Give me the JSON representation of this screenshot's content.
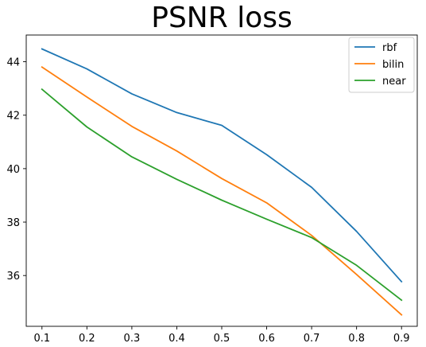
{
  "chart_data": {
    "type": "line",
    "title": "PSNR loss",
    "xlabel": "",
    "ylabel": "",
    "x": [
      0.1,
      0.2,
      0.3,
      0.4,
      0.5,
      0.6,
      0.7,
      0.8,
      0.9
    ],
    "xlim": [
      0.065,
      0.935
    ],
    "ylim": [
      34.1,
      45.0
    ],
    "xticks": [
      "0.1",
      "0.2",
      "0.3",
      "0.4",
      "0.5",
      "0.6",
      "0.7",
      "0.8",
      "0.9"
    ],
    "yticks": [
      "36",
      "38",
      "40",
      "42",
      "44"
    ],
    "grid": false,
    "legend_position": "top-right",
    "series": [
      {
        "name": "rbf",
        "color": "#1f77b4",
        "values": [
          44.48,
          43.73,
          42.8,
          42.1,
          41.62,
          40.52,
          39.3,
          37.65,
          35.77
        ]
      },
      {
        "name": "bilin",
        "color": "#ff7f0e",
        "values": [
          43.8,
          42.68,
          41.58,
          40.66,
          39.63,
          38.72,
          37.5,
          36.04,
          34.53
        ]
      },
      {
        "name": "near",
        "color": "#2ca02c",
        "values": [
          42.97,
          41.56,
          40.44,
          39.6,
          38.82,
          38.11,
          37.42,
          36.38,
          35.08
        ]
      }
    ]
  }
}
